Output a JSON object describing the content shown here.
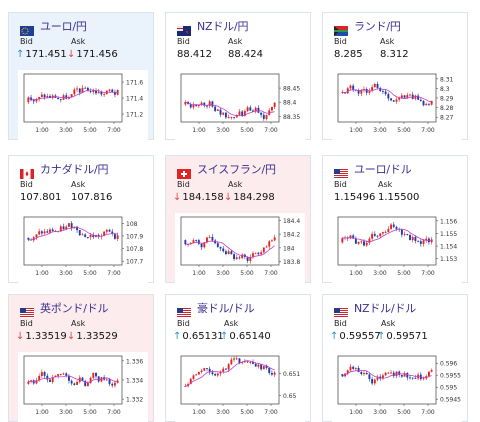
{
  "labels": {
    "bid": "Bid",
    "ask": "Ask"
  },
  "colors": {
    "up": "#2a8fd6",
    "down": "#e04848",
    "candle_up": "#e3241f",
    "candle_down": "#1f3aa6",
    "ma": "#c040c8"
  },
  "cards": [
    {
      "pair": "ユーロ/円",
      "flag": "eu",
      "bg": "blue",
      "bid": "171.451",
      "bid_dir": "up",
      "ask": "171.456",
      "ask_dir": "down",
      "yticks": [
        "171.6",
        "171.4",
        "171.2"
      ],
      "xticks": [
        "1:00",
        "3:00",
        "5:00",
        "7:00"
      ],
      "chart_data": {
        "type": "candlestick",
        "ylim": [
          171.1,
          171.7
        ],
        "x": [
          "1:00",
          "3:00",
          "5:00",
          "7:00"
        ]
      }
    },
    {
      "pair": "NZドル/円",
      "flag": "nz",
      "bg": "white",
      "bid": "88.412",
      "bid_dir": "",
      "ask": "88.424",
      "ask_dir": "",
      "yticks": [
        "88.45",
        "88.4",
        "88.35"
      ],
      "xticks": [
        "1:00",
        "3:00",
        "5:00",
        "7:00"
      ],
      "chart_data": {
        "type": "candlestick",
        "ylim": [
          88.33,
          88.5
        ],
        "x": [
          "1:00",
          "3:00",
          "5:00",
          "7:00"
        ]
      }
    },
    {
      "pair": "ランド/円",
      "flag": "za",
      "bg": "white",
      "bid": "8.285",
      "bid_dir": "",
      "ask": "8.312",
      "ask_dir": "",
      "yticks": [
        "8.31",
        "8.3",
        "8.29",
        "8.28",
        "8.27"
      ],
      "xticks": [
        "1:00",
        "3:00",
        "5:00",
        "7:00"
      ],
      "chart_data": {
        "type": "candlestick",
        "ylim": [
          8.265,
          8.315
        ],
        "x": [
          "1:00",
          "3:00",
          "5:00",
          "7:00"
        ]
      }
    },
    {
      "pair": "カナダドル/円",
      "flag": "ca",
      "bg": "white",
      "bid": "107.801",
      "bid_dir": "",
      "ask": "107.816",
      "ask_dir": "",
      "yticks": [
        "108",
        "107.9",
        "107.8",
        "107.7"
      ],
      "xticks": [
        "1:00",
        "3:00",
        "5:00",
        "7:00"
      ],
      "chart_data": {
        "type": "candlestick",
        "ylim": [
          107.67,
          108.05
        ],
        "x": [
          "1:00",
          "3:00",
          "5:00",
          "7:00"
        ]
      }
    },
    {
      "pair": "スイスフラン/円",
      "flag": "ch",
      "bg": "pink",
      "bid": "184.158",
      "bid_dir": "down",
      "ask": "184.298",
      "ask_dir": "down",
      "yticks": [
        "184.4",
        "184.2",
        "184",
        "183.8"
      ],
      "xticks": [
        "1:00",
        "3:00",
        "5:00",
        "7:00"
      ],
      "chart_data": {
        "type": "candlestick",
        "ylim": [
          183.75,
          184.45
        ],
        "x": [
          "1:00",
          "3:00",
          "5:00",
          "7:00"
        ]
      }
    },
    {
      "pair": "ユーロ/ドル",
      "flag": "us",
      "bg": "white",
      "bid": "1.15496",
      "bid_dir": "",
      "ask": "1.15500",
      "ask_dir": "",
      "yticks": [
        "1.156",
        "1.155",
        "1.154",
        "1.153"
      ],
      "xticks": [
        "1:00",
        "3:00",
        "5:00",
        "7:00"
      ],
      "chart_data": {
        "type": "candlestick",
        "ylim": [
          1.1525,
          1.1563
        ],
        "x": [
          "1:00",
          "3:00",
          "5:00",
          "7:00"
        ]
      }
    },
    {
      "pair": "英ポンド/ドル",
      "flag": "us",
      "bg": "pink",
      "bid": "1.33519",
      "bid_dir": "down",
      "ask": "1.33529",
      "ask_dir": "down",
      "yticks": [
        "1.336",
        "1.334",
        "1.332"
      ],
      "xticks": [
        "1:00",
        "3:00",
        "5:00",
        "7:00"
      ],
      "chart_data": {
        "type": "candlestick",
        "ylim": [
          1.3315,
          1.3365
        ],
        "x": [
          "1:00",
          "3:00",
          "5:00",
          "7:00"
        ]
      }
    },
    {
      "pair": "豪ドル/ドル",
      "flag": "us",
      "bg": "white",
      "bid": "0.65131",
      "bid_dir": "up",
      "ask": "0.65140",
      "ask_dir": "up",
      "yticks": [
        "0.651",
        "0.65"
      ],
      "xticks": [
        "1:00",
        "3:00",
        "5:00",
        "7:00"
      ],
      "chart_data": {
        "type": "candlestick",
        "ylim": [
          0.6496,
          0.6518
        ],
        "x": [
          "1:00",
          "3:00",
          "5:00",
          "7:00"
        ]
      }
    },
    {
      "pair": "NZドル/ドル",
      "flag": "us",
      "bg": "white",
      "bid": "0.59557",
      "bid_dir": "up",
      "ask": "0.59571",
      "ask_dir": "up",
      "yticks": [
        "0.596",
        "0.5955",
        "0.595",
        "0.5945"
      ],
      "xticks": [
        "1:00",
        "3:00",
        "5:00",
        "7:00"
      ],
      "chart_data": {
        "type": "candlestick",
        "ylim": [
          0.5943,
          0.5963
        ],
        "x": [
          "1:00",
          "3:00",
          "5:00",
          "7:00"
        ]
      }
    }
  ]
}
